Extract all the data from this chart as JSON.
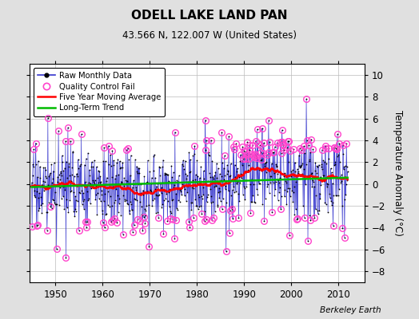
{
  "title": "ODELL LAKE LAND PAN",
  "subtitle": "43.566 N, 122.007 W (United States)",
  "ylabel": "Temperature Anomaly (°C)",
  "credit": "Berkeley Earth",
  "ylim": [
    -9,
    11
  ],
  "yticks": [
    -8,
    -6,
    -4,
    -2,
    0,
    2,
    4,
    6,
    8,
    10
  ],
  "xlim": [
    1944.5,
    2015.5
  ],
  "xticks": [
    1950,
    1960,
    1970,
    1980,
    1990,
    2000,
    2010
  ],
  "bg_color": "#e0e0e0",
  "plot_bg_color": "#ffffff",
  "raw_line_color": "#3333cc",
  "raw_dot_color": "#000000",
  "qc_color": "#ff44cc",
  "moving_avg_color": "#ff0000",
  "trend_color": "#00bb00",
  "seed": 17,
  "n_months": 804,
  "start_year": 1945.0,
  "noise_std": 1.9
}
